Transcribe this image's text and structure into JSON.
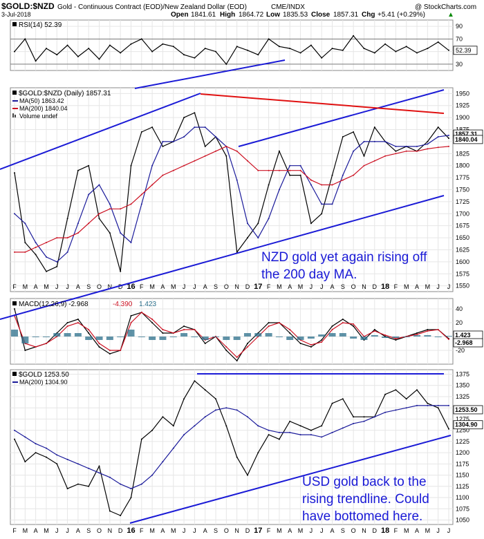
{
  "header": {
    "symbol": "$GOLD:$NZD",
    "description": "Gold - Continuous Contract (EOD)/New Zealand Dollar (EOD)",
    "exchange": "CME/INDX",
    "brand": "@ StockCharts.com",
    "date": "3-Jul-2018",
    "open_label": "Open",
    "open": "1841.61",
    "high_label": "High",
    "high": "1864.72",
    "low_label": "Low",
    "low": "1835.53",
    "close_label": "Close",
    "close": "1857.31",
    "chg_label": "Chg",
    "chg": "+5.41 (+0.29%)",
    "chg_marker": "▲"
  },
  "colors": {
    "price": "#000000",
    "ma50": "#1a1a9a",
    "ma200": "#cc1122",
    "trend_blue": "#1a1ad6",
    "trend_red": "#e01010",
    "annotation": "#1a1ad6",
    "histogram": "#2a6e8a"
  },
  "x_axis": {
    "labels": [
      "F",
      "M",
      "A",
      "M",
      "J",
      "J",
      "A",
      "S",
      "O",
      "N",
      "D",
      "16",
      "F",
      "M",
      "A",
      "M",
      "J",
      "J",
      "A",
      "S",
      "O",
      "N",
      "D",
      "17",
      "F",
      "M",
      "A",
      "M",
      "J",
      "J",
      "A",
      "S",
      "O",
      "N",
      "D",
      "18",
      "F",
      "M",
      "A",
      "M",
      "J",
      "J"
    ],
    "start": "2015-02",
    "end": "2018-07"
  },
  "chart_data": [
    {
      "type": "line",
      "panel": "rsi",
      "legend": "RSI(14) 52.39",
      "y_ticks": [
        30,
        50,
        70,
        90
      ],
      "ylim": [
        20,
        100
      ],
      "last_value_label": "52.39",
      "series": [
        {
          "name": "RSI(14)",
          "values": [
            50,
            70,
            35,
            55,
            45,
            60,
            42,
            55,
            38,
            60,
            48,
            62,
            70,
            50,
            62,
            58,
            45,
            40,
            55,
            50,
            30,
            58,
            52,
            45,
            70,
            58,
            55,
            48,
            60,
            40,
            55,
            52,
            75,
            55,
            48,
            62,
            50,
            58,
            48,
            55,
            65,
            52
          ]
        }
      ]
    },
    {
      "type": "line",
      "panel": "price",
      "title": "$GOLD:$NZD (Daily) 1857.31",
      "legend": [
        "MA(50) 1863.42",
        "MA(200) 1840.04",
        "Volume undef"
      ],
      "y_ticks": [
        1550,
        1575,
        1600,
        1625,
        1650,
        1675,
        1700,
        1725,
        1750,
        1775,
        1800,
        1825,
        1850,
        1875,
        1900,
        1925,
        1950
      ],
      "ylim": [
        1538,
        1962
      ],
      "last_value_labels": [
        "1857.31",
        "1840.04"
      ],
      "x": [
        "2015-02",
        "2015-03",
        "2015-04",
        "2015-05",
        "2015-06",
        "2015-07",
        "2015-08",
        "2015-09",
        "2015-10",
        "2015-11",
        "2015-12",
        "2016-01",
        "2016-02",
        "2016-03",
        "2016-04",
        "2016-05",
        "2016-06",
        "2016-07",
        "2016-08",
        "2016-09",
        "2016-10",
        "2016-11",
        "2016-12",
        "2017-01",
        "2017-02",
        "2017-03",
        "2017-04",
        "2017-05",
        "2017-06",
        "2017-07",
        "2017-08",
        "2017-09",
        "2017-10",
        "2017-11",
        "2017-12",
        "2018-01",
        "2018-02",
        "2018-03",
        "2018-04",
        "2018-05",
        "2018-06",
        "2018-07"
      ],
      "series": [
        {
          "name": "$GOLD:$NZD",
          "values": [
            1785,
            1640,
            1615,
            1580,
            1590,
            1690,
            1790,
            1800,
            1690,
            1660,
            1580,
            1800,
            1870,
            1880,
            1840,
            1850,
            1900,
            1910,
            1840,
            1860,
            1820,
            1620,
            1650,
            1680,
            1760,
            1830,
            1780,
            1780,
            1680,
            1700,
            1780,
            1860,
            1870,
            1820,
            1880,
            1850,
            1830,
            1840,
            1830,
            1850,
            1880,
            1857
          ]
        },
        {
          "name": "MA(50)",
          "values": [
            1700,
            1680,
            1640,
            1610,
            1600,
            1620,
            1680,
            1740,
            1760,
            1720,
            1660,
            1640,
            1720,
            1800,
            1850,
            1850,
            1860,
            1880,
            1880,
            1860,
            1840,
            1770,
            1680,
            1650,
            1690,
            1750,
            1800,
            1800,
            1760,
            1720,
            1720,
            1780,
            1830,
            1850,
            1850,
            1850,
            1840,
            1840,
            1840,
            1845,
            1860,
            1863
          ]
        },
        {
          "name": "MA(200)",
          "values": [
            1620,
            1620,
            1630,
            1640,
            1650,
            1650,
            1660,
            1680,
            1700,
            1710,
            1710,
            1720,
            1740,
            1760,
            1780,
            1790,
            1800,
            1810,
            1820,
            1830,
            1840,
            1830,
            1810,
            1790,
            1790,
            1790,
            1790,
            1790,
            1770,
            1760,
            1760,
            1770,
            1780,
            1800,
            1810,
            1820,
            1825,
            1830,
            1830,
            1835,
            1838,
            1840
          ]
        }
      ]
    },
    {
      "type": "line",
      "panel": "macd",
      "legend": [
        "MACD(12,26,9) -2.968",
        "-4.390",
        "1.423"
      ],
      "y_ticks": [
        -20,
        0,
        20,
        40
      ],
      "ylim": [
        -40,
        55
      ],
      "last_value_labels": [
        "1.423",
        "-2.968"
      ],
      "series": [
        {
          "name": "MACD",
          "values": [
            40,
            -20,
            -15,
            -10,
            5,
            20,
            25,
            5,
            -15,
            -25,
            -20,
            30,
            35,
            20,
            5,
            5,
            15,
            10,
            -10,
            0,
            -20,
            -35,
            -10,
            5,
            20,
            20,
            5,
            -10,
            -15,
            -5,
            15,
            25,
            15,
            -5,
            10,
            0,
            -5,
            0,
            5,
            10,
            10,
            -3
          ]
        },
        {
          "name": "Signal",
          "values": [
            30,
            -10,
            -15,
            -10,
            0,
            15,
            20,
            10,
            -10,
            -20,
            -20,
            20,
            35,
            25,
            10,
            5,
            10,
            10,
            -5,
            0,
            -15,
            -30,
            -15,
            0,
            15,
            20,
            10,
            -5,
            -12,
            -8,
            10,
            20,
            18,
            0,
            8,
            2,
            -3,
            0,
            3,
            8,
            10,
            -4
          ]
        }
      ]
    },
    {
      "type": "line",
      "panel": "usd_gold",
      "legend": [
        "$GOLD 1253.50",
        "MA(200) 1304.90"
      ],
      "y_ticks": [
        1050,
        1075,
        1100,
        1125,
        1150,
        1175,
        1200,
        1225,
        1250,
        1275,
        1300,
        1325,
        1350,
        1375
      ],
      "ylim": [
        1040,
        1385
      ],
      "last_value_labels": [
        "1304.90",
        "1253.50"
      ],
      "series": [
        {
          "name": "$GOLD",
          "values": [
            1230,
            1180,
            1200,
            1190,
            1175,
            1120,
            1130,
            1125,
            1170,
            1070,
            1060,
            1100,
            1230,
            1250,
            1280,
            1260,
            1320,
            1360,
            1340,
            1320,
            1260,
            1190,
            1150,
            1200,
            1240,
            1230,
            1270,
            1260,
            1250,
            1260,
            1310,
            1320,
            1280,
            1280,
            1280,
            1330,
            1340,
            1320,
            1340,
            1310,
            1300,
            1253
          ]
        },
        {
          "name": "MA(200)",
          "values": [
            1250,
            1235,
            1220,
            1210,
            1195,
            1185,
            1175,
            1165,
            1155,
            1145,
            1130,
            1120,
            1130,
            1150,
            1180,
            1210,
            1240,
            1260,
            1280,
            1295,
            1300,
            1295,
            1280,
            1260,
            1250,
            1245,
            1245,
            1240,
            1240,
            1235,
            1245,
            1255,
            1265,
            1270,
            1280,
            1290,
            1295,
            1300,
            1305,
            1305,
            1305,
            1305
          ]
        }
      ]
    }
  ],
  "annotations": {
    "nzd": [
      "NZD gold yet again rising off",
      "the 200 day MA."
    ],
    "usd": [
      "USD gold back to the",
      "rising trendline. Could",
      "have bottomed here."
    ]
  }
}
